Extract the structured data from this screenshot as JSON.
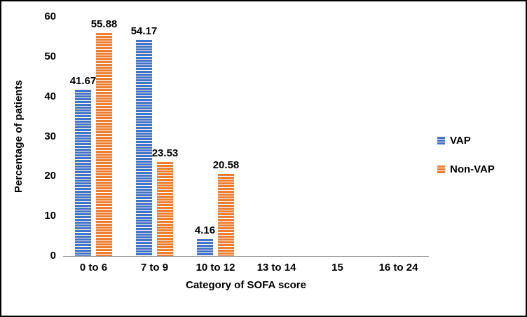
{
  "chart_data": {
    "type": "bar",
    "title": "",
    "categories": [
      "0 to 6",
      "7 to 9",
      "10 to 12",
      "13 to 14",
      "15",
      "16 to 24"
    ],
    "series": [
      {
        "name": "VAP",
        "color": "#4472C4",
        "values": [
          41.67,
          54.17,
          4.16,
          0,
          0,
          0
        ],
        "labels": [
          "41.67",
          "54.17",
          "4.16",
          "",
          "",
          ""
        ]
      },
      {
        "name": "Non-VAP",
        "color": "#ED7D31",
        "values": [
          55.88,
          23.53,
          20.58,
          0,
          0,
          0
        ],
        "labels": [
          "55.88",
          "23.53",
          "20.58",
          "",
          "",
          ""
        ]
      }
    ],
    "xlabel": "Category of SOFA score",
    "ylabel": "Percentage of patients",
    "ylim": [
      0,
      60
    ],
    "yticks": [
      0,
      10,
      20,
      30,
      40,
      50,
      60
    ],
    "legend_position": "right",
    "data_labels": true,
    "grid": false,
    "axis_line_color": "#898989",
    "pattern": "horizontal-stripes"
  }
}
